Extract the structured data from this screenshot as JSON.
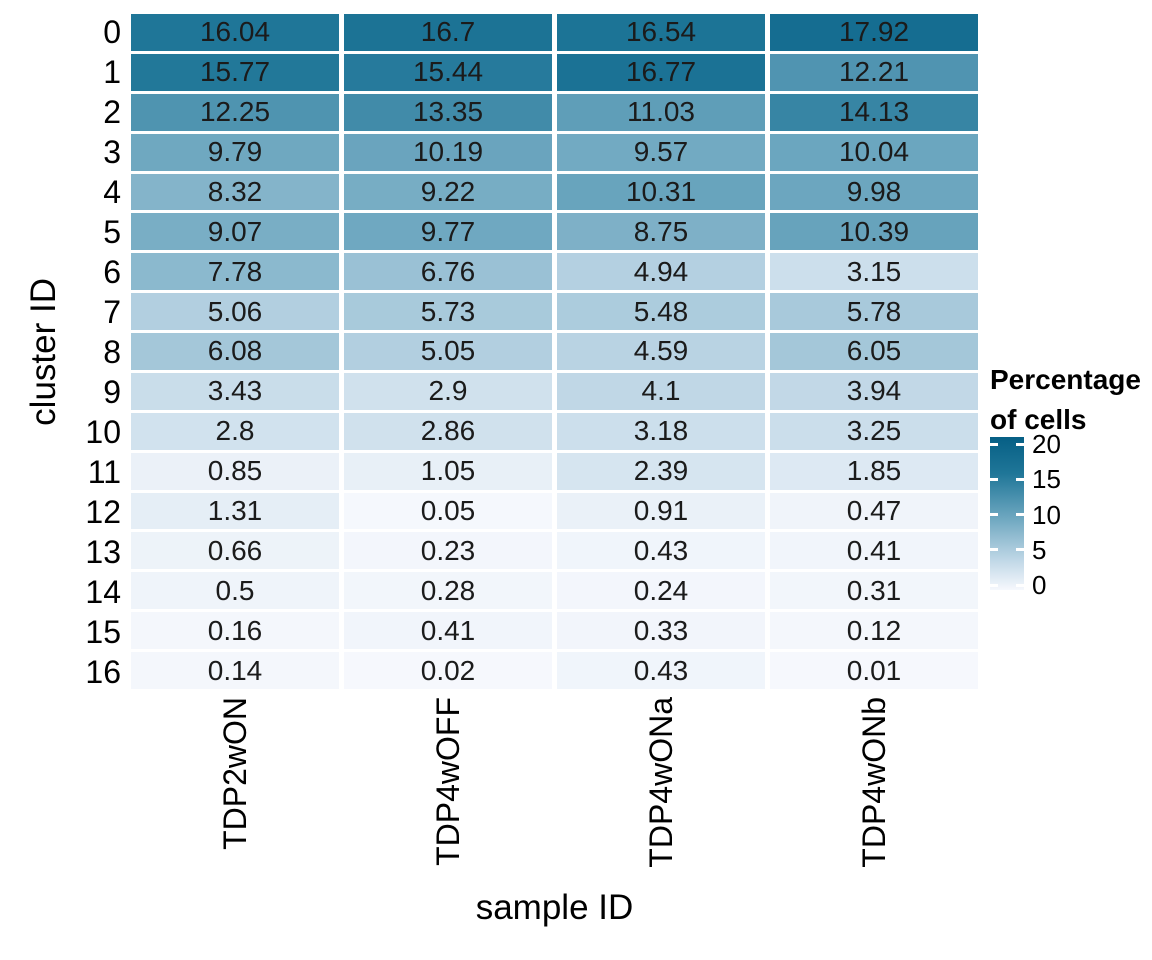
{
  "chart_data": {
    "type": "heatmap",
    "xlabel": "sample ID",
    "ylabel": "cluster ID",
    "x_categories": [
      "TDP2wON",
      "TDP4wOFF",
      "TDP4wONa",
      "TDP4wONb"
    ],
    "y_categories": [
      "0",
      "1",
      "2",
      "3",
      "4",
      "5",
      "6",
      "7",
      "8",
      "9",
      "10",
      "11",
      "12",
      "13",
      "14",
      "15",
      "16"
    ],
    "values": [
      [
        16.04,
        16.7,
        16.54,
        17.92
      ],
      [
        15.77,
        15.44,
        16.77,
        12.21
      ],
      [
        12.25,
        13.35,
        11.03,
        14.13
      ],
      [
        9.79,
        10.19,
        9.57,
        10.04
      ],
      [
        8.32,
        9.22,
        10.31,
        9.98
      ],
      [
        9.07,
        9.77,
        8.75,
        10.39
      ],
      [
        7.78,
        6.76,
        4.94,
        3.15
      ],
      [
        5.06,
        5.73,
        5.48,
        5.78
      ],
      [
        6.08,
        5.05,
        4.59,
        6.05
      ],
      [
        3.43,
        2.9,
        4.1,
        3.94
      ],
      [
        2.8,
        2.86,
        3.18,
        3.25
      ],
      [
        0.85,
        1.05,
        2.39,
        1.85
      ],
      [
        1.31,
        0.05,
        0.91,
        0.47
      ],
      [
        0.66,
        0.23,
        0.43,
        0.41
      ],
      [
        0.5,
        0.28,
        0.24,
        0.31
      ],
      [
        0.16,
        0.41,
        0.33,
        0.12
      ],
      [
        0.14,
        0.02,
        0.43,
        0.01
      ]
    ],
    "legend": {
      "title_line1": "Percentage",
      "title_line2": "of cells",
      "ticks": [
        20,
        15,
        10,
        5,
        0
      ],
      "tick_fraction_top": 0.046,
      "tick_fraction_bottom": 0.967
    },
    "colorscale": {
      "stops": [
        {
          "v": 0,
          "c": "#f6f8fd"
        },
        {
          "v": 4,
          "c": "#c1d8e7"
        },
        {
          "v": 10,
          "c": "#6ca6bf"
        },
        {
          "v": 16,
          "c": "#1f7698"
        },
        {
          "v": 21,
          "c": "#065f85"
        }
      ]
    },
    "grid": "off",
    "legend_position": "right",
    "cell_text_color": "#1b1b1b",
    "background_color": "#ffffff"
  }
}
